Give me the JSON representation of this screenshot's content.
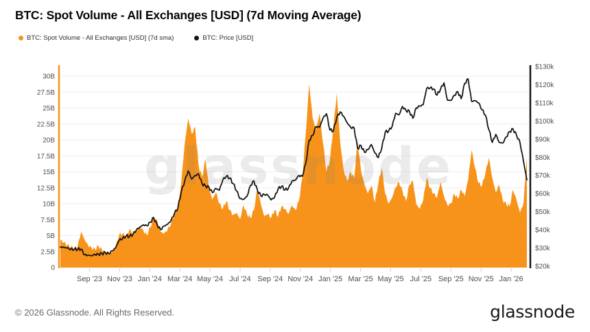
{
  "title": "BTC: Spot Volume - All Exchanges [USD] (7d Moving Average)",
  "legend": [
    {
      "label": "BTC: Spot Volume - All Exchanges [USD] (7d sma)",
      "color": "#f7931a"
    },
    {
      "label": "BTC: Price [USD]",
      "color": "#141414"
    }
  ],
  "watermark": "glassnode",
  "footer": {
    "copyright": "© 2026 Glassnode. All Rights Reserved.",
    "logo": "glassnode"
  },
  "colors": {
    "volume": "#f7931a",
    "price": "#141414",
    "grid": "#ededed",
    "axis_label": "#4f4f4f",
    "tick_mark": "#cfcfcf"
  },
  "chart_data": {
    "type": "area",
    "subtype": "area (left axis) + line overlay (right axis)",
    "title": "BTC: Spot Volume - All Exchanges [USD] (7d Moving Average)",
    "x_axis": {
      "tick_labels": [
        "Sep '23",
        "Nov '23",
        "Jan '24",
        "Mar '24",
        "May '24",
        "Jul '24",
        "Sep '24",
        "Nov '24",
        "Jan '25",
        "Mar '25",
        "May '25",
        "Jul '25",
        "Sep '25",
        "Nov '25",
        "Jan '26"
      ],
      "resolution": "weekly points, ~Jul 2023 to ~Feb 2026"
    },
    "left_axis": {
      "ticks": [
        "0",
        "2.5B",
        "5B",
        "7.5B",
        "10B",
        "12.5B",
        "15B",
        "17.5B",
        "20B",
        "22.5B",
        "25B",
        "27.5B",
        "30B"
      ],
      "range_billions_usd": [
        0,
        30
      ],
      "grid": true
    },
    "right_axis": {
      "ticks": [
        "$20k",
        "$30k",
        "$40k",
        "$50k",
        "$60k",
        "$70k",
        "$80k",
        "$90k",
        "$100k",
        "$110k",
        "$120k",
        "$130k"
      ],
      "range_thousands_usd": [
        20,
        130
      ],
      "grid": false
    },
    "legend_position": "top-left",
    "series": [
      {
        "name": "BTC: Spot Volume - All Exchanges [USD] (7d sma)",
        "type": "area",
        "axis": "left",
        "unit": "billions USD",
        "color": "#f7931a",
        "values": [
          4.3,
          3.9,
          3.5,
          3.2,
          3.0,
          3.3,
          5.6,
          4.4,
          3.5,
          3.1,
          2.9,
          3.4,
          2.8,
          2.4,
          2.2,
          2.4,
          3.3,
          5.1,
          5.3,
          4.7,
          6.0,
          5.3,
          5.7,
          6.5,
          5.8,
          5.1,
          6.3,
          7.9,
          7.3,
          5.6,
          5.3,
          5.9,
          6.8,
          8.4,
          9.2,
          13.5,
          19.5,
          23.4,
          21.0,
          22.0,
          16.0,
          14.2,
          17.0,
          12.5,
          10.6,
          11.8,
          10.0,
          9.2,
          10.4,
          9.0,
          8.2,
          8.6,
          7.6,
          9.8,
          8.4,
          7.8,
          9.0,
          12.4,
          10.0,
          8.0,
          8.4,
          7.8,
          9.0,
          8.0,
          9.6,
          9.2,
          8.4,
          9.8,
          9.0,
          10.4,
          14.0,
          21.0,
          28.8,
          23.5,
          21.5,
          24.2,
          19.5,
          15.0,
          16.8,
          22.0,
          27.3,
          19.5,
          15.2,
          13.6,
          15.0,
          14.0,
          19.8,
          15.2,
          13.0,
          11.6,
          12.9,
          10.2,
          13.2,
          15.6,
          11.6,
          10.0,
          11.0,
          12.6,
          13.4,
          12.0,
          10.4,
          13.0,
          13.6,
          9.9,
          9.2,
          10.6,
          14.0,
          12.4,
          11.6,
          11.0,
          13.4,
          11.2,
          9.8,
          10.0,
          11.6,
          10.8,
          12.2,
          11.2,
          13.8,
          18.4,
          15.6,
          13.2,
          12.8,
          14.8,
          17.2,
          14.0,
          11.8,
          13.0,
          10.6,
          10.0,
          9.6,
          12.2,
          10.6,
          8.6,
          10.0,
          17.3
        ]
      },
      {
        "name": "BTC: Price [USD]",
        "type": "line",
        "axis": "right",
        "unit": "thousands USD",
        "color": "#141414",
        "values": [
          30.6,
          30.3,
          30.0,
          29.2,
          29.3,
          29.2,
          29.4,
          26.2,
          26.0,
          25.8,
          26.5,
          26.6,
          26.9,
          27.5,
          26.9,
          28.4,
          30.1,
          34.3,
          35.1,
          36.6,
          36.3,
          37.5,
          40.0,
          41.5,
          42.8,
          42.3,
          44.2,
          46.8,
          42.8,
          40.1,
          42.1,
          43.0,
          45.0,
          49.0,
          52.0,
          61.0,
          67.0,
          72.5,
          68.0,
          70.0,
          70.8,
          65.5,
          64.2,
          63.5,
          60.5,
          62.8,
          61.8,
          67.5,
          69.5,
          68.5,
          65.5,
          61.5,
          57.2,
          56.8,
          58.5,
          64.5,
          67.0,
          62.0,
          58.8,
          59.5,
          59.2,
          56.5,
          58.0,
          62.5,
          64.0,
          62.0,
          62.8,
          66.8,
          67.5,
          70.0,
          69.5,
          76.5,
          89.5,
          92.0,
          97.0,
          96.5,
          101.5,
          104.0,
          95.0,
          94.5,
          102.0,
          105.0,
          102.5,
          99.0,
          96.5,
          96.2,
          85.0,
          86.5,
          82.8,
          84.2,
          87.0,
          82.4,
          79.8,
          85.0,
          93.8,
          94.5,
          97.0,
          104.2,
          103.4,
          108.0,
          105.8,
          105.4,
          101.5,
          107.3,
          108.2,
          109.0,
          118.0,
          118.2,
          117.6,
          114.2,
          117.5,
          121.0,
          111.5,
          111.3,
          114.2,
          116.2,
          112.3,
          120.8,
          123.2,
          110.8,
          111.2,
          110.0,
          106.2,
          103.2,
          95.2,
          88.2,
          92.6,
          88.2,
          87.8,
          91.2,
          94.2,
          95.6,
          92.2,
          88.2,
          78.0,
          67.5
        ]
      }
    ]
  }
}
